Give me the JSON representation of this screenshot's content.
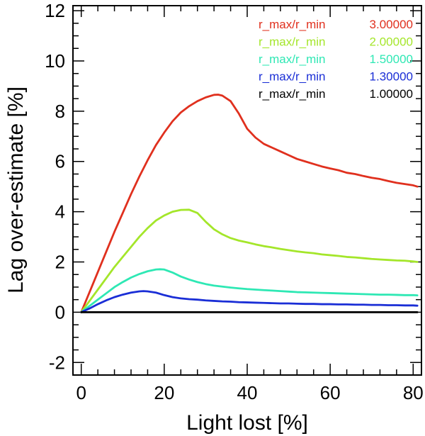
{
  "chart_data": {
    "type": "line",
    "title": "",
    "xlabel": "Light lost [%]",
    "ylabel": "Lag over-estimate [%]",
    "xlim": [
      -2,
      82
    ],
    "ylim": [
      -2.5,
      12.2
    ],
    "xticks": [
      0,
      20,
      40,
      60,
      80
    ],
    "xtick_labels": [
      "0",
      "20",
      "40",
      "60",
      "80"
    ],
    "yticks": [
      -2,
      0,
      2,
      4,
      6,
      8,
      10,
      12
    ],
    "ytick_labels": [
      "-2",
      "0",
      "2",
      "4",
      "6",
      "8",
      "10",
      "12"
    ],
    "legend_position": "top-right",
    "series": [
      {
        "name": "r_max/r_min",
        "value_label": "3.00000",
        "color": "#e0301e",
        "x": [
          0,
          2,
          4,
          6,
          8,
          10,
          12,
          14,
          16,
          18,
          20,
          22,
          24,
          26,
          28,
          30,
          32,
          33,
          34,
          36,
          38,
          40,
          42,
          44,
          46,
          48,
          50,
          52,
          54,
          56,
          58,
          60,
          62,
          64,
          66,
          68,
          70,
          72,
          74,
          76,
          78,
          80,
          81
        ],
        "values": [
          0,
          0.8,
          1.6,
          2.4,
          3.2,
          3.95,
          4.7,
          5.4,
          6.05,
          6.65,
          7.15,
          7.6,
          7.95,
          8.2,
          8.4,
          8.55,
          8.65,
          8.66,
          8.62,
          8.4,
          7.9,
          7.3,
          6.95,
          6.7,
          6.55,
          6.4,
          6.25,
          6.1,
          6.0,
          5.9,
          5.8,
          5.72,
          5.65,
          5.55,
          5.5,
          5.42,
          5.35,
          5.3,
          5.22,
          5.15,
          5.1,
          5.05,
          5.0
        ]
      },
      {
        "name": "r_max/r_min",
        "value_label": "2.00000",
        "color": "#a4e62a",
        "x": [
          0,
          2,
          4,
          6,
          8,
          10,
          12,
          14,
          16,
          18,
          20,
          22,
          24,
          26,
          28,
          30,
          32,
          34,
          36,
          38,
          40,
          42,
          44,
          46,
          48,
          50,
          52,
          54,
          56,
          58,
          60,
          62,
          64,
          66,
          68,
          70,
          72,
          74,
          76,
          78,
          80,
          81
        ],
        "values": [
          0,
          0.45,
          0.9,
          1.35,
          1.8,
          2.2,
          2.6,
          3.0,
          3.35,
          3.65,
          3.85,
          4.0,
          4.07,
          4.08,
          3.95,
          3.6,
          3.3,
          3.1,
          2.95,
          2.85,
          2.78,
          2.7,
          2.63,
          2.58,
          2.52,
          2.47,
          2.42,
          2.38,
          2.35,
          2.3,
          2.27,
          2.24,
          2.2,
          2.18,
          2.15,
          2.12,
          2.1,
          2.08,
          2.06,
          2.05,
          2.02,
          2.0
        ]
      },
      {
        "name": "r_max/r_min",
        "value_label": "1.50000",
        "color": "#2ee8b4",
        "x": [
          0,
          2,
          4,
          6,
          8,
          10,
          12,
          14,
          16,
          18,
          19,
          20,
          22,
          24,
          26,
          28,
          30,
          32,
          34,
          36,
          38,
          40,
          42,
          44,
          46,
          48,
          50,
          52,
          54,
          56,
          58,
          60,
          62,
          64,
          66,
          68,
          70,
          72,
          74,
          76,
          78,
          80,
          81
        ],
        "values": [
          0,
          0.25,
          0.5,
          0.75,
          1.0,
          1.2,
          1.38,
          1.52,
          1.63,
          1.7,
          1.71,
          1.7,
          1.58,
          1.42,
          1.3,
          1.2,
          1.12,
          1.06,
          1.02,
          0.98,
          0.95,
          0.92,
          0.9,
          0.88,
          0.86,
          0.84,
          0.82,
          0.8,
          0.79,
          0.78,
          0.77,
          0.76,
          0.75,
          0.74,
          0.73,
          0.72,
          0.71,
          0.7,
          0.7,
          0.69,
          0.68,
          0.68,
          0.67
        ]
      },
      {
        "name": "r_max/r_min",
        "value_label": "1.30000",
        "color": "#1a2ed6",
        "x": [
          0,
          2,
          4,
          6,
          8,
          10,
          12,
          14,
          15,
          16,
          18,
          20,
          22,
          24,
          26,
          28,
          30,
          32,
          34,
          36,
          38,
          40,
          42,
          44,
          46,
          48,
          50,
          52,
          54,
          56,
          58,
          60,
          62,
          64,
          66,
          68,
          70,
          72,
          74,
          76,
          78,
          80,
          81
        ],
        "values": [
          0,
          0.15,
          0.32,
          0.47,
          0.6,
          0.7,
          0.78,
          0.83,
          0.84,
          0.83,
          0.78,
          0.68,
          0.6,
          0.55,
          0.52,
          0.5,
          0.47,
          0.45,
          0.43,
          0.42,
          0.4,
          0.39,
          0.38,
          0.37,
          0.36,
          0.35,
          0.35,
          0.34,
          0.33,
          0.33,
          0.32,
          0.32,
          0.31,
          0.31,
          0.3,
          0.3,
          0.29,
          0.29,
          0.28,
          0.28,
          0.27,
          0.27,
          0.26
        ]
      },
      {
        "name": "r_max/r_min",
        "value_label": "1.00000",
        "color": "#000000",
        "x": [
          0,
          81
        ],
        "values": [
          0,
          0
        ]
      }
    ]
  }
}
